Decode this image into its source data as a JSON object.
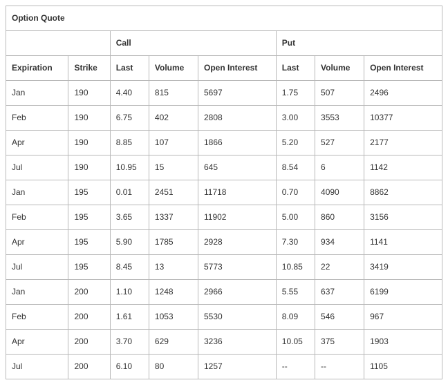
{
  "table": {
    "title": "Option Quote",
    "group_headers": {
      "call": "Call",
      "put": "Put"
    },
    "columns": {
      "expiration": "Expiration",
      "strike": "Strike",
      "call_last": "Last",
      "call_volume": "Volume",
      "call_oi": "Open Interest",
      "put_last": "Last",
      "put_volume": "Volume",
      "put_oi": "Open Interest"
    },
    "rows": [
      {
        "expiration": "Jan",
        "strike": "190",
        "call_last": "4.40",
        "call_volume": "815",
        "call_oi": "5697",
        "put_last": "1.75",
        "put_volume": "507",
        "put_oi": "2496"
      },
      {
        "expiration": "Feb",
        "strike": "190",
        "call_last": "6.75",
        "call_volume": "402",
        "call_oi": "2808",
        "put_last": "3.00",
        "put_volume": "3553",
        "put_oi": "10377"
      },
      {
        "expiration": "Apr",
        "strike": "190",
        "call_last": "8.85",
        "call_volume": "107",
        "call_oi": "1866",
        "put_last": "5.20",
        "put_volume": "527",
        "put_oi": "2177"
      },
      {
        "expiration": "Jul",
        "strike": "190",
        "call_last": "10.95",
        "call_volume": "15",
        "call_oi": "645",
        "put_last": "8.54",
        "put_volume": "6",
        "put_oi": "1142"
      },
      {
        "expiration": "Jan",
        "strike": "195",
        "call_last": "0.01",
        "call_volume": "2451",
        "call_oi": "11718",
        "put_last": "0.70",
        "put_volume": "4090",
        "put_oi": "8862"
      },
      {
        "expiration": "Feb",
        "strike": "195",
        "call_last": "3.65",
        "call_volume": "1337",
        "call_oi": "11902",
        "put_last": "5.00",
        "put_volume": "860",
        "put_oi": "3156"
      },
      {
        "expiration": "Apr",
        "strike": "195",
        "call_last": "5.90",
        "call_volume": "1785",
        "call_oi": "2928",
        "put_last": "7.30",
        "put_volume": "934",
        "put_oi": "1141"
      },
      {
        "expiration": "Jul",
        "strike": "195",
        "call_last": "8.45",
        "call_volume": "13",
        "call_oi": "5773",
        "put_last": "10.85",
        "put_volume": "22",
        "put_oi": "3419"
      },
      {
        "expiration": "Jan",
        "strike": "200",
        "call_last": "1.10",
        "call_volume": "1248",
        "call_oi": "2966",
        "put_last": "5.55",
        "put_volume": "637",
        "put_oi": "6199"
      },
      {
        "expiration": "Feb",
        "strike": "200",
        "call_last": "1.61",
        "call_volume": "1053",
        "call_oi": "5530",
        "put_last": "8.09",
        "put_volume": "546",
        "put_oi": "967"
      },
      {
        "expiration": "Apr",
        "strike": "200",
        "call_last": "3.70",
        "call_volume": "629",
        "call_oi": "3236",
        "put_last": "10.05",
        "put_volume": "375",
        "put_oi": "1903"
      },
      {
        "expiration": "Jul",
        "strike": "200",
        "call_last": "6.10",
        "call_volume": "80",
        "call_oi": "1257",
        "put_last": "--",
        "put_volume": "--",
        "put_oi": "1105"
      }
    ],
    "style": {
      "border_color": "#b8b8b8",
      "text_color": "#333333",
      "font_size_pt": 9,
      "header_bold": true
    }
  }
}
